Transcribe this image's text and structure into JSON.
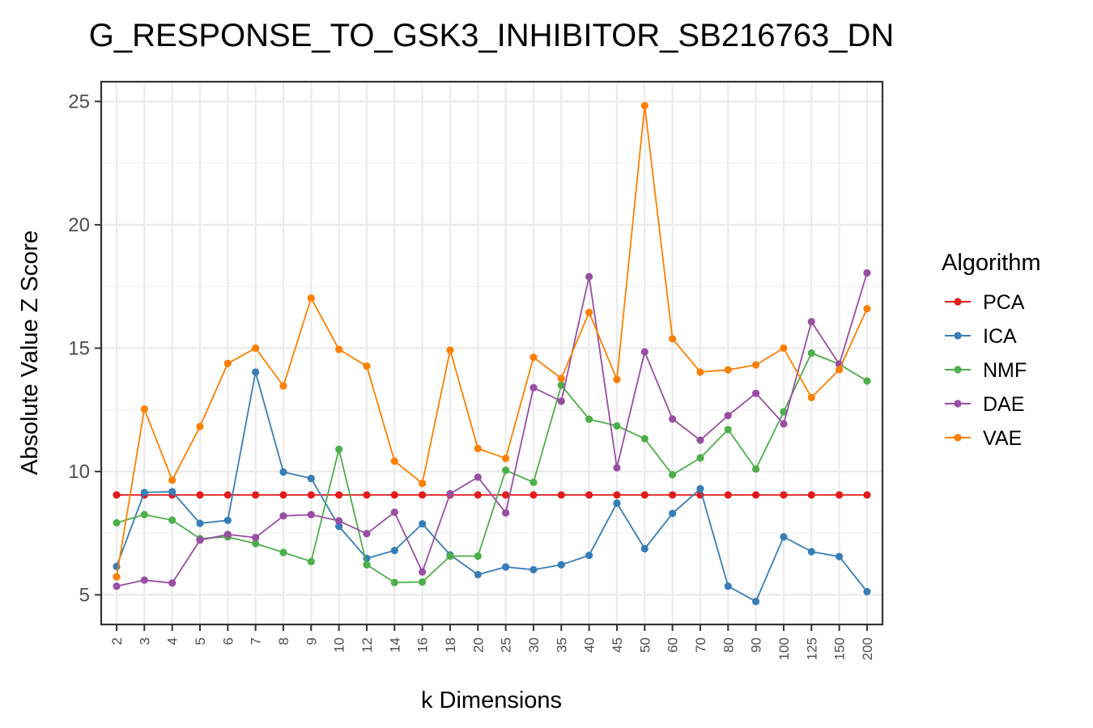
{
  "chart_data": {
    "type": "line",
    "title": "G_RESPONSE_TO_GSK3_INHIBITOR_SB216763_DN",
    "xlabel": "k Dimensions",
    "ylabel": "Absolute Value Z Score",
    "ylim": [
      3.8,
      25.8
    ],
    "yticks": [
      5,
      10,
      15,
      20,
      25
    ],
    "grid": true,
    "legend": {
      "title": "Algorithm",
      "position": "right"
    },
    "categories": [
      "2",
      "3",
      "4",
      "5",
      "6",
      "7",
      "8",
      "9",
      "10",
      "12",
      "14",
      "16",
      "18",
      "20",
      "25",
      "30",
      "35",
      "40",
      "45",
      "50",
      "60",
      "70",
      "80",
      "90",
      "100",
      "125",
      "150",
      "200"
    ],
    "series": [
      {
        "name": "PCA",
        "color": "#e41a1c",
        "values": [
          9.05,
          9.05,
          9.05,
          9.05,
          9.05,
          9.05,
          9.05,
          9.05,
          9.05,
          9.05,
          9.05,
          9.05,
          9.05,
          9.05,
          9.05,
          9.05,
          9.05,
          9.05,
          9.05,
          9.05,
          9.05,
          9.05,
          9.05,
          9.05,
          9.05,
          9.05,
          9.05,
          9.05
        ]
      },
      {
        "name": "ICA",
        "color": "#377eb8",
        "values": [
          6.15,
          9.15,
          9.18,
          7.9,
          8.02,
          14.03,
          9.98,
          9.72,
          7.78,
          6.48,
          6.8,
          7.88,
          6.62,
          5.82,
          6.13,
          6.02,
          6.22,
          6.6,
          8.72,
          6.87,
          8.3,
          9.3,
          5.35,
          4.73,
          7.35,
          6.75,
          6.55,
          5.13
        ]
      },
      {
        "name": "NMF",
        "color": "#4daf4a",
        "values": [
          7.92,
          8.25,
          8.03,
          7.28,
          7.35,
          7.08,
          6.72,
          6.35,
          10.9,
          6.22,
          5.5,
          5.52,
          6.57,
          6.57,
          10.05,
          9.56,
          13.5,
          12.12,
          11.85,
          11.33,
          9.87,
          10.55,
          11.7,
          10.1,
          12.42,
          14.8,
          14.35,
          13.67
        ]
      },
      {
        "name": "DAE",
        "color": "#984ea3",
        "values": [
          5.35,
          5.6,
          5.48,
          7.22,
          7.45,
          7.32,
          8.2,
          8.25,
          8.0,
          7.48,
          8.35,
          5.93,
          9.1,
          9.77,
          8.32,
          13.4,
          12.85,
          17.9,
          10.15,
          14.85,
          12.13,
          11.27,
          12.27,
          13.17,
          11.93,
          16.07,
          14.35,
          18.05
        ]
      },
      {
        "name": "VAE",
        "color": "#ff7f00",
        "values": [
          5.73,
          12.53,
          9.65,
          11.82,
          14.38,
          15.0,
          13.47,
          17.03,
          14.95,
          14.27,
          10.42,
          9.52,
          14.92,
          10.93,
          10.53,
          14.63,
          13.77,
          16.45,
          13.73,
          24.83,
          15.38,
          14.03,
          14.12,
          14.32,
          15.0,
          13.0,
          14.13,
          16.6
        ]
      }
    ]
  }
}
